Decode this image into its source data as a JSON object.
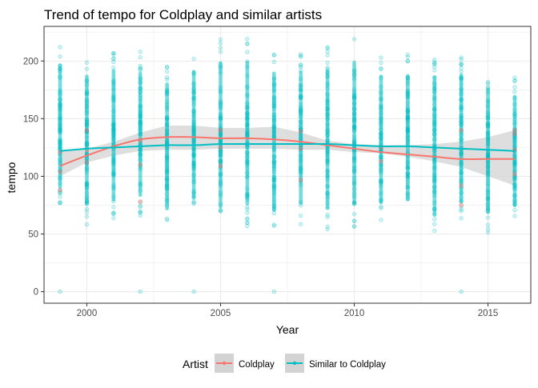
{
  "chart_data": {
    "type": "scatter",
    "title": "Trend of tempo for Coldplay and similar artists",
    "xlabel": "Year",
    "ylabel": "tempo",
    "xlim": [
      1998.4,
      2016.6
    ],
    "ylim": [
      -10,
      230
    ],
    "x_ticks": [
      2000,
      2005,
      2010,
      2015
    ],
    "y_ticks": [
      0,
      50,
      100,
      150,
      200
    ],
    "grid": true,
    "legend": {
      "title": "Artist",
      "position": "bottom",
      "entries": [
        "Coldplay",
        "Similar to Coldplay"
      ]
    },
    "colors": {
      "coldplay": "#F8766D",
      "similar": "#00BFC4",
      "ribbon": "#D3D3D3",
      "grid": "#EBEBEB",
      "panel_border": "#333333"
    },
    "point_columns": [
      {
        "x": 1999,
        "min": 72,
        "max": 215,
        "outliers": [
          0
        ]
      },
      {
        "x": 2000,
        "min": 58,
        "max": 206,
        "outliers": []
      },
      {
        "x": 2001,
        "min": 60,
        "max": 211,
        "outliers": []
      },
      {
        "x": 2002,
        "min": 65,
        "max": 208,
        "outliers": [
          0
        ]
      },
      {
        "x": 2003,
        "min": 53,
        "max": 199,
        "outliers": []
      },
      {
        "x": 2004,
        "min": 63,
        "max": 210,
        "outliers": [
          0
        ]
      },
      {
        "x": 2005,
        "min": 52,
        "max": 220,
        "outliers": []
      },
      {
        "x": 2006,
        "min": 55,
        "max": 220,
        "outliers": []
      },
      {
        "x": 2007,
        "min": 50,
        "max": 210,
        "outliers": [
          0
        ]
      },
      {
        "x": 2008,
        "min": 57,
        "max": 210,
        "outliers": []
      },
      {
        "x": 2009,
        "min": 52,
        "max": 212,
        "outliers": []
      },
      {
        "x": 2010,
        "min": 56,
        "max": 220,
        "outliers": []
      },
      {
        "x": 2011,
        "min": 58,
        "max": 206,
        "outliers": []
      },
      {
        "x": 2012,
        "min": 61,
        "max": 206,
        "outliers": []
      },
      {
        "x": 2013,
        "min": 46,
        "max": 207,
        "outliers": []
      },
      {
        "x": 2014,
        "min": 59,
        "max": 207,
        "outliers": [
          0
        ]
      },
      {
        "x": 2015,
        "min": 50,
        "max": 194,
        "outliers": []
      },
      {
        "x": 2016,
        "min": 58,
        "max": 186,
        "outliers": []
      }
    ],
    "series": [
      {
        "name": "Coldplay",
        "x": [
          1999,
          2000,
          2001,
          2002,
          2003,
          2004,
          2005,
          2006,
          2007,
          2008,
          2009,
          2010,
          2011,
          2012,
          2013,
          2014,
          2015,
          2016
        ],
        "values": [
          109,
          118,
          126,
          132,
          134,
          134,
          133,
          133,
          132,
          130,
          127,
          124,
          121,
          119,
          117,
          115,
          115,
          115
        ],
        "ci_low": [],
        "ci_high": []
      },
      {
        "name": "Similar to Coldplay",
        "x": [
          1999,
          2000,
          2001,
          2002,
          2003,
          2004,
          2005,
          2006,
          2007,
          2008,
          2009,
          2010,
          2011,
          2012,
          2013,
          2014,
          2015,
          2016
        ],
        "values": [
          122,
          124,
          125,
          126,
          127,
          127,
          128,
          128,
          128,
          128,
          128,
          127,
          126,
          126,
          125,
          124,
          123,
          122
        ],
        "ci_low": [],
        "ci_high": []
      }
    ],
    "ribbon": {
      "x": [
        1999,
        2000,
        2001,
        2002,
        2003,
        2004,
        2005,
        2006,
        2007,
        2008,
        2009,
        2010,
        2011,
        2012,
        2013,
        2014,
        2015,
        2016
      ],
      "low": [
        100,
        112,
        118,
        122,
        123,
        123,
        124,
        124,
        124,
        123,
        123,
        121,
        120,
        117,
        113,
        108,
        100,
        92
      ],
      "high": [
        122,
        124,
        130,
        138,
        144,
        144,
        142,
        142,
        143,
        138,
        131,
        128,
        127,
        127,
        128,
        130,
        134,
        140
      ]
    },
    "coldplay_points": [
      {
        "x": 1999,
        "y": 88
      },
      {
        "x": 1999,
        "y": 104
      },
      {
        "x": 1999,
        "y": 121
      },
      {
        "x": 2000,
        "y": 140
      },
      {
        "x": 2000,
        "y": 112
      },
      {
        "x": 2000,
        "y": 123
      },
      {
        "x": 2002,
        "y": 110
      },
      {
        "x": 2002,
        "y": 78
      },
      {
        "x": 2002,
        "y": 131
      },
      {
        "x": 2005,
        "y": 125
      },
      {
        "x": 2005,
        "y": 140
      },
      {
        "x": 2005,
        "y": 109
      },
      {
        "x": 2008,
        "y": 139
      },
      {
        "x": 2008,
        "y": 124
      },
      {
        "x": 2008,
        "y": 97
      },
      {
        "x": 2011,
        "y": 125
      },
      {
        "x": 2011,
        "y": 113
      },
      {
        "x": 2014,
        "y": 75
      },
      {
        "x": 2014,
        "y": 140
      },
      {
        "x": 2014,
        "y": 92
      },
      {
        "x": 2016,
        "y": 140
      },
      {
        "x": 2016,
        "y": 102
      },
      {
        "x": 2016,
        "y": 137
      },
      {
        "x": 2016,
        "y": 123
      }
    ]
  }
}
